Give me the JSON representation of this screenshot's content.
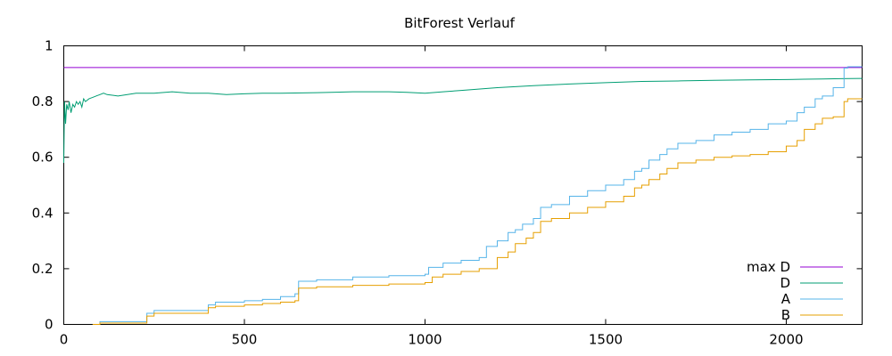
{
  "chart_data": {
    "type": "line",
    "title": "BitForest Verlauf",
    "xlabel": "",
    "ylabel": "",
    "xlim": [
      0,
      2210
    ],
    "ylim": [
      0,
      1
    ],
    "xticks": [
      0,
      500,
      1000,
      1500,
      2000
    ],
    "yticks": [
      0,
      0.2,
      0.4,
      0.6,
      0.8,
      1
    ],
    "ytick_labels": [
      "0",
      "0.2",
      "0.4",
      "0.6",
      "0.8",
      "1"
    ],
    "grid": false,
    "legend_position": "bottom-right",
    "series": [
      {
        "name": "max D",
        "color": "#9400d3",
        "style": "line",
        "x": [
          0,
          2210
        ],
        "y": [
          0.922,
          0.922
        ]
      },
      {
        "name": "D",
        "color": "#009e73",
        "style": "line",
        "x": [
          0,
          2,
          5,
          8,
          12,
          15,
          20,
          25,
          30,
          35,
          40,
          45,
          50,
          55,
          60,
          70,
          80,
          90,
          100,
          110,
          120,
          150,
          200,
          250,
          300,
          350,
          400,
          450,
          500,
          550,
          600,
          700,
          800,
          900,
          950,
          1000,
          1050,
          1100,
          1200,
          1300,
          1400,
          1500,
          1600,
          1700,
          1800,
          1900,
          2000,
          2050,
          2100,
          2150,
          2210
        ],
        "y": [
          0.58,
          0.8,
          0.72,
          0.79,
          0.77,
          0.8,
          0.76,
          0.79,
          0.78,
          0.8,
          0.79,
          0.8,
          0.78,
          0.81,
          0.8,
          0.81,
          0.815,
          0.82,
          0.825,
          0.83,
          0.825,
          0.82,
          0.83,
          0.83,
          0.835,
          0.83,
          0.83,
          0.825,
          0.828,
          0.83,
          0.83,
          0.832,
          0.835,
          0.835,
          0.833,
          0.83,
          0.835,
          0.84,
          0.85,
          0.857,
          0.863,
          0.868,
          0.872,
          0.874,
          0.876,
          0.878,
          0.879,
          0.88,
          0.881,
          0.882,
          0.883
        ]
      },
      {
        "name": "A",
        "color": "#56b4e9",
        "style": "step",
        "x": [
          80,
          100,
          200,
          230,
          250,
          300,
          400,
          420,
          500,
          550,
          600,
          640,
          650,
          700,
          800,
          900,
          1000,
          1010,
          1050,
          1100,
          1150,
          1170,
          1200,
          1230,
          1250,
          1270,
          1300,
          1320,
          1350,
          1400,
          1450,
          1500,
          1550,
          1580,
          1600,
          1620,
          1650,
          1670,
          1700,
          1750,
          1800,
          1850,
          1900,
          1950,
          2000,
          2030,
          2050,
          2080,
          2100,
          2130,
          2160,
          2170,
          2210
        ],
        "y": [
          0.0,
          0.01,
          0.01,
          0.04,
          0.05,
          0.05,
          0.07,
          0.08,
          0.085,
          0.09,
          0.1,
          0.11,
          0.155,
          0.16,
          0.17,
          0.175,
          0.18,
          0.205,
          0.22,
          0.23,
          0.24,
          0.28,
          0.3,
          0.33,
          0.34,
          0.36,
          0.38,
          0.42,
          0.43,
          0.46,
          0.48,
          0.5,
          0.52,
          0.55,
          0.56,
          0.59,
          0.61,
          0.63,
          0.65,
          0.66,
          0.68,
          0.69,
          0.7,
          0.72,
          0.73,
          0.76,
          0.78,
          0.81,
          0.82,
          0.85,
          0.92,
          0.925,
          0.925
        ]
      },
      {
        "name": "B",
        "color": "#e69f00",
        "style": "step",
        "x": [
          80,
          100,
          200,
          230,
          250,
          300,
          400,
          420,
          500,
          550,
          600,
          640,
          650,
          700,
          800,
          900,
          1000,
          1020,
          1050,
          1100,
          1150,
          1200,
          1230,
          1250,
          1280,
          1300,
          1320,
          1350,
          1400,
          1450,
          1500,
          1550,
          1580,
          1600,
          1620,
          1650,
          1670,
          1700,
          1750,
          1800,
          1850,
          1900,
          1950,
          2000,
          2030,
          2050,
          2080,
          2100,
          2130,
          2160,
          2170,
          2210
        ],
        "y": [
          0.0,
          0.005,
          0.005,
          0.03,
          0.04,
          0.04,
          0.06,
          0.065,
          0.07,
          0.075,
          0.08,
          0.085,
          0.13,
          0.135,
          0.14,
          0.145,
          0.15,
          0.17,
          0.18,
          0.19,
          0.2,
          0.24,
          0.26,
          0.29,
          0.31,
          0.33,
          0.37,
          0.38,
          0.4,
          0.42,
          0.44,
          0.46,
          0.49,
          0.5,
          0.52,
          0.54,
          0.56,
          0.58,
          0.59,
          0.6,
          0.605,
          0.61,
          0.62,
          0.64,
          0.66,
          0.7,
          0.72,
          0.74,
          0.745,
          0.8,
          0.81,
          0.81
        ]
      }
    ]
  }
}
